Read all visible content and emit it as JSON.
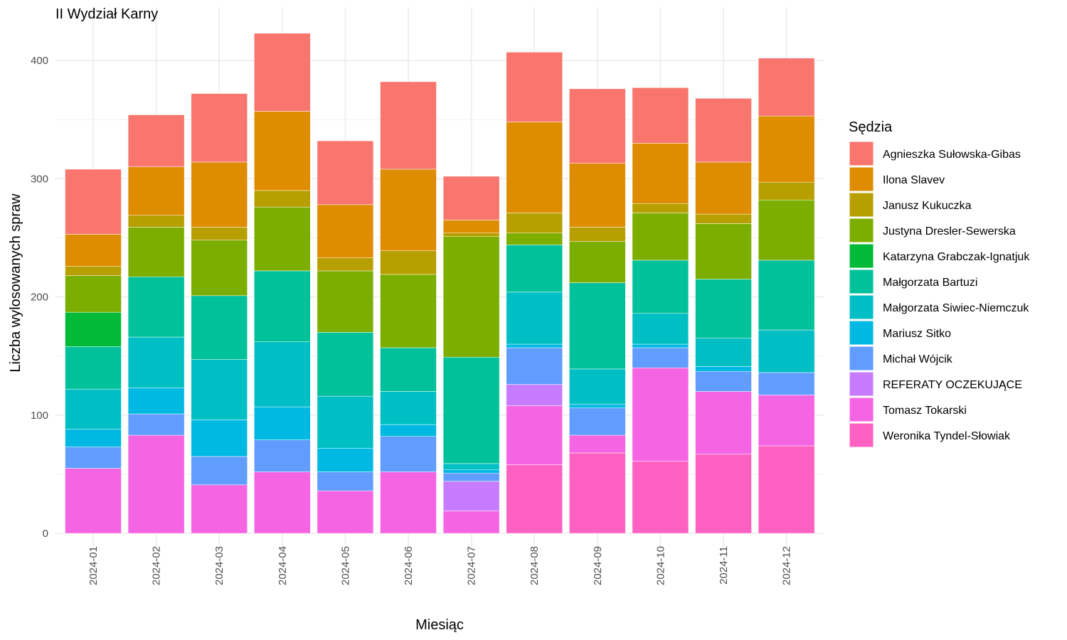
{
  "chart_data": {
    "type": "bar",
    "stacked": true,
    "title": "II Wydział Karny",
    "xlabel": "Miesiąc",
    "ylabel": "Liczba wylosowanych spraw",
    "ylim": [
      0,
      430
    ],
    "yticks": [
      0,
      100,
      200,
      300,
      400
    ],
    "grid": true,
    "legend": {
      "title": "Sędzia",
      "position": "right"
    },
    "categories": [
      "2024-01",
      "2024-02",
      "2024-03",
      "2024-04",
      "2024-05",
      "2024-06",
      "2024-07",
      "2024-08",
      "2024-09",
      "2024-10",
      "2024-11",
      "2024-12"
    ],
    "series": [
      {
        "name": "Weronika Tyndel-Słowiak",
        "color": "#FF61C3",
        "values": [
          0,
          0,
          0,
          0,
          0,
          0,
          0,
          58,
          68,
          61,
          67,
          74
        ]
      },
      {
        "name": "Tomasz Tokarski",
        "color": "#F564E3",
        "values": [
          55,
          83,
          41,
          52,
          36,
          52,
          19,
          50,
          15,
          79,
          53,
          43
        ]
      },
      {
        "name": "REFERATY OCZEKUJĄCE",
        "color": "#C77CFF",
        "values": [
          0,
          0,
          0,
          0,
          0,
          0,
          25,
          18,
          0,
          0,
          0,
          0
        ]
      },
      {
        "name": "Michał Wójcik",
        "color": "#619CFF",
        "values": [
          18,
          18,
          24,
          27,
          16,
          30,
          7,
          31,
          23,
          17,
          17,
          19
        ]
      },
      {
        "name": "Mariusz Sitko",
        "color": "#00B9E3",
        "values": [
          15,
          22,
          31,
          28,
          20,
          10,
          3,
          3,
          3,
          3,
          4,
          0
        ]
      },
      {
        "name": "Małgorzata Siwiec-Niemczuk",
        "color": "#00BFC4",
        "values": [
          34,
          43,
          51,
          55,
          44,
          28,
          5,
          44,
          30,
          26,
          24,
          36
        ]
      },
      {
        "name": "Małgorzata Bartuzi",
        "color": "#00C19A",
        "values": [
          36,
          51,
          54,
          60,
          54,
          37,
          90,
          40,
          73,
          45,
          50,
          59
        ]
      },
      {
        "name": "Katarzyna Grabczak-Ignatjuk",
        "color": "#00BA38",
        "values": [
          29,
          0,
          0,
          0,
          0,
          0,
          0,
          0,
          0,
          0,
          0,
          0
        ]
      },
      {
        "name": "Justyna Dresler-Sewerska",
        "color": "#7CAE00",
        "values": [
          31,
          42,
          47,
          54,
          52,
          62,
          102,
          10,
          35,
          40,
          47,
          51
        ]
      },
      {
        "name": "Janusz Kukuczka",
        "color": "#B79F00",
        "values": [
          8,
          10,
          11,
          14,
          11,
          20,
          3,
          17,
          12,
          8,
          8,
          15
        ]
      },
      {
        "name": "Ilona Slavev",
        "color": "#DE8C00",
        "values": [
          27,
          41,
          55,
          67,
          45,
          69,
          11,
          77,
          54,
          51,
          44,
          56
        ]
      },
      {
        "name": "Agnieszka Sułowska-Gibas",
        "color": "#F8766D",
        "values": [
          55,
          44,
          58,
          66,
          54,
          74,
          37,
          59,
          63,
          47,
          54,
          49
        ]
      }
    ]
  }
}
